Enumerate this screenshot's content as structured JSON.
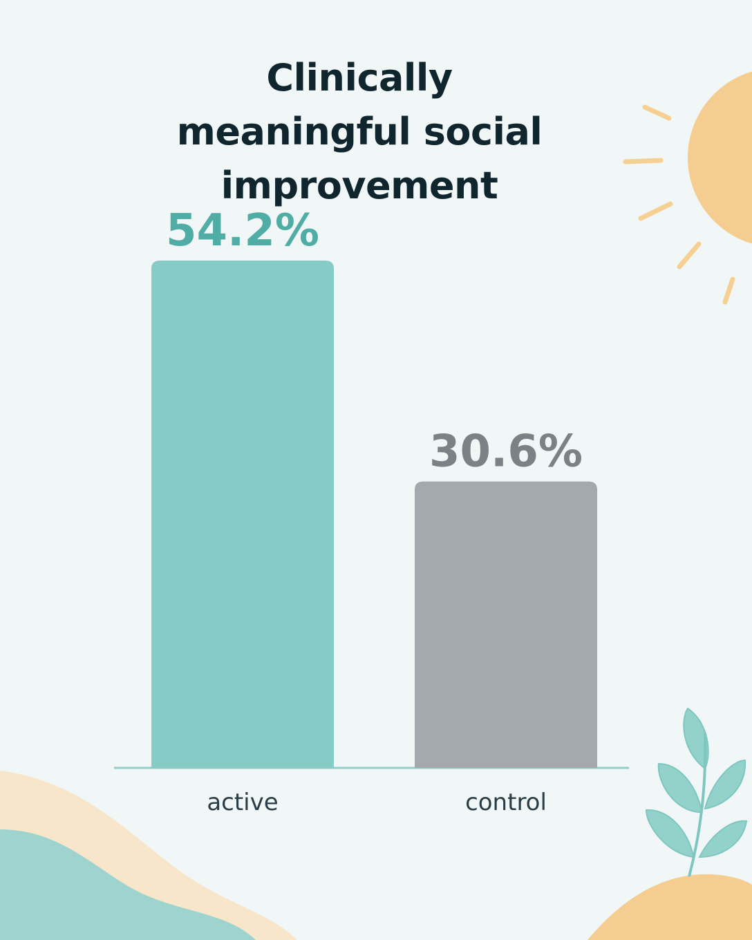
{
  "chart_data": {
    "type": "bar",
    "title": "Clinically meaningful social improvement",
    "categories": [
      "active",
      "control"
    ],
    "values": [
      54.2,
      30.6
    ],
    "value_labels": [
      "54.2%",
      "30.6%"
    ],
    "colors": [
      "#86cbc5",
      "#a3a9ac"
    ],
    "label_colors": [
      "#4fada6",
      "#7b8184"
    ]
  }
}
